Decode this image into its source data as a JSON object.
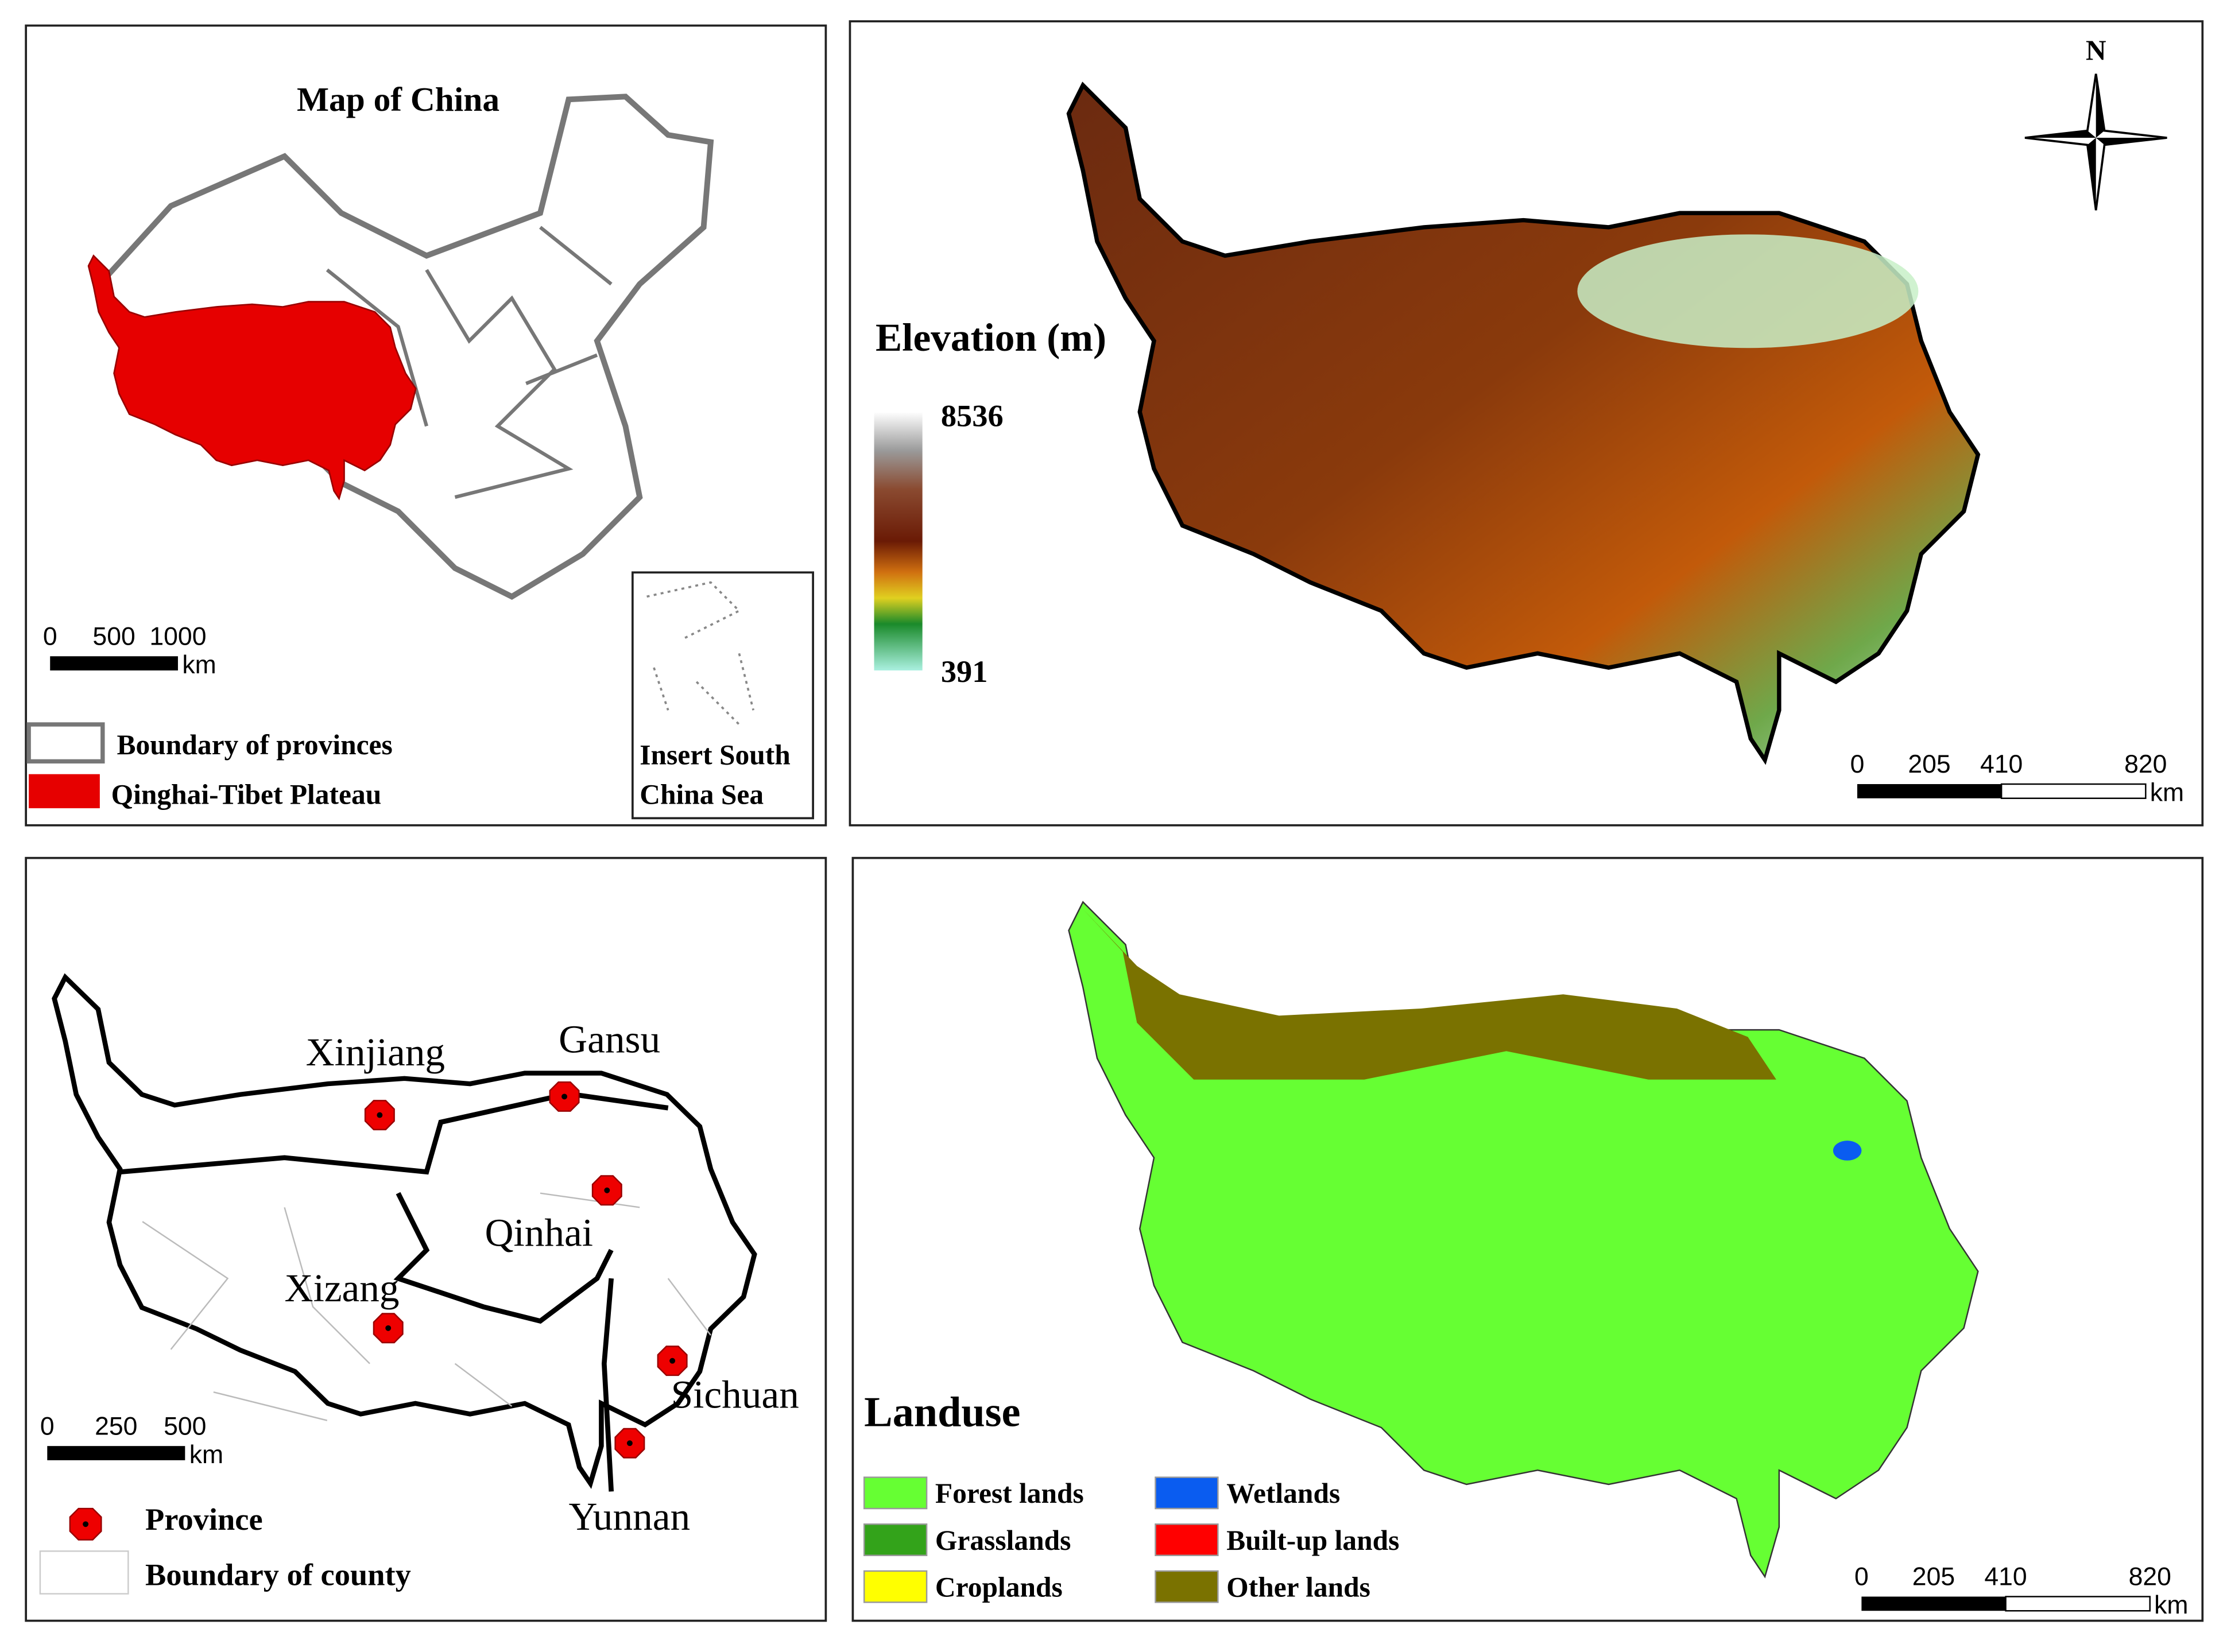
{
  "china_map": {
    "title": "Map of China",
    "scale": {
      "ticks": [
        0,
        500,
        1000
      ],
      "unit": "km"
    },
    "legend": [
      "Boundary of provinces",
      "Qinghai-Tibet Plateau"
    ],
    "inset": [
      "Insert South",
      "China Sea"
    ]
  },
  "elevation_map": {
    "title": "Elevation (m)",
    "max": 8536,
    "min": 391,
    "north": "N",
    "scale": {
      "ticks": [
        0,
        205,
        410,
        820
      ],
      "unit": "km"
    }
  },
  "province_map": {
    "provinces": [
      "Xinjiang",
      "Gansu",
      "Qinhai",
      "Xizang",
      "Sichuan",
      "Yunnan"
    ],
    "scale": {
      "ticks": [
        0,
        250,
        500
      ],
      "unit": "km"
    },
    "legend": [
      "Province",
      "Boundary of county"
    ]
  },
  "landuse_map": {
    "title": "Landuse",
    "legend": [
      {
        "name": "Forest lands",
        "color": "#66ff33"
      },
      {
        "name": "Grasslands",
        "color": "#33a31a"
      },
      {
        "name": "Croplands",
        "color": "#ffff00"
      },
      {
        "name": "Wetlands",
        "color": "#0a5cf0"
      },
      {
        "name": "Built-up lands",
        "color": "#ff0000"
      },
      {
        "name": "Other lands",
        "color": "#7a7200"
      }
    ],
    "scale": {
      "ticks": [
        0,
        205,
        410,
        820
      ],
      "unit": "km"
    }
  }
}
